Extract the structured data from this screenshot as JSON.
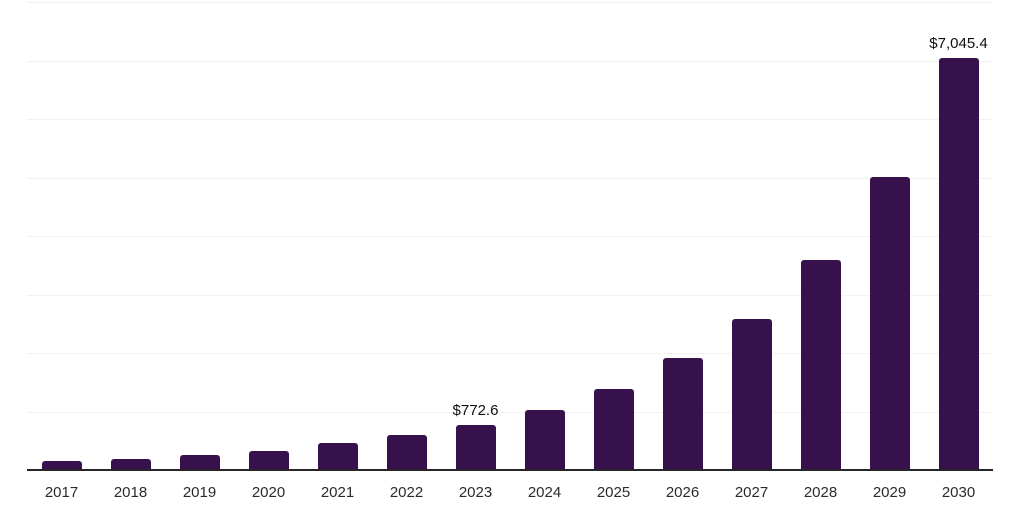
{
  "chart": {
    "bar_color": "#36114C",
    "grid_color": "#f2f2f2",
    "axis_color": "#262626",
    "value_label_color": "#111111",
    "tick_label_color": "#2b2b2b"
  },
  "chart_data": {
    "type": "bar",
    "title": "",
    "xlabel": "",
    "ylabel": "",
    "categories": [
      "2017",
      "2018",
      "2019",
      "2020",
      "2021",
      "2022",
      "2023",
      "2024",
      "2025",
      "2026",
      "2027",
      "2028",
      "2029",
      "2030"
    ],
    "values": [
      160,
      185,
      250,
      325,
      455,
      605,
      772.6,
      1030,
      1385,
      1910,
      2590,
      3595,
      5015,
      7045.4
    ],
    "data_labels": {
      "2023": "$772.6",
      "2030": "$7,045.4"
    },
    "ylim": [
      0,
      8000
    ],
    "grid_step": 1000,
    "grid": true,
    "y_tick_labels_visible": false,
    "legend": "none"
  }
}
